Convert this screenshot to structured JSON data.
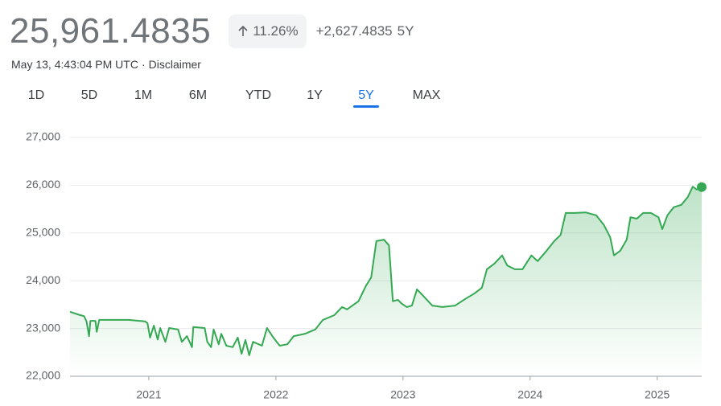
{
  "header": {
    "price": "25,961.4835",
    "change_percent": "11.26%",
    "change": "+2,627.4835",
    "period": "5Y",
    "timestamp": "May 13, 4:43:04 PM UTC",
    "separator": "·",
    "disclaimer": "Disclaimer"
  },
  "tabs": {
    "items": [
      "1D",
      "5D",
      "1M",
      "6M",
      "YTD",
      "1Y",
      "5Y",
      "MAX"
    ],
    "selected": 6
  },
  "chart_data": {
    "type": "area-line",
    "color": "#34a853",
    "grid": true,
    "x": [
      2020.38,
      2020.46,
      2020.49,
      2020.51,
      2020.53,
      2020.54,
      2020.58,
      2020.59,
      2020.61,
      2020.72,
      2020.84,
      2020.97,
      2020.99,
      2021.01,
      2021.04,
      2021.07,
      2021.09,
      2021.13,
      2021.16,
      2021.23,
      2021.26,
      2021.3,
      2021.34,
      2021.35,
      2021.44,
      2021.46,
      2021.49,
      2021.51,
      2021.55,
      2021.57,
      2021.61,
      2021.66,
      2021.7,
      2021.73,
      2021.76,
      2021.79,
      2021.82,
      2021.89,
      2021.93,
      2021.98,
      2022.03,
      2022.09,
      2022.14,
      2022.23,
      2022.31,
      2022.37,
      2022.46,
      2022.52,
      2022.56,
      2022.65,
      2022.71,
      2022.75,
      2022.79,
      2022.85,
      2022.89,
      2022.92,
      2022.96,
      2022.99,
      2023.03,
      2023.07,
      2023.11,
      2023.16,
      2023.23,
      2023.31,
      2023.41,
      2023.49,
      2023.56,
      2023.62,
      2023.66,
      2023.72,
      2023.78,
      2023.82,
      2023.88,
      2023.94,
      2024.01,
      2024.06,
      2024.13,
      2024.19,
      2024.24,
      2024.28,
      2024.35,
      2024.44,
      2024.52,
      2024.58,
      2024.63,
      2024.66,
      2024.71,
      2024.76,
      2024.79,
      2024.84,
      2024.89,
      2024.95,
      2025.01,
      2025.04,
      2025.08,
      2025.13,
      2025.19,
      2025.24,
      2025.28,
      2025.31,
      2025.35
    ],
    "values": [
      23350,
      23280,
      23260,
      23150,
      22840,
      23160,
      23160,
      22930,
      23180,
      23180,
      23180,
      23150,
      23110,
      22810,
      23060,
      22770,
      23010,
      22720,
      23010,
      22980,
      22720,
      22840,
      22610,
      23030,
      23010,
      22720,
      22610,
      22980,
      22670,
      22890,
      22640,
      22610,
      22810,
      22470,
      22760,
      22440,
      22720,
      22640,
      23010,
      22810,
      22640,
      22670,
      22840,
      22890,
      22980,
      23180,
      23280,
      23450,
      23400,
      23570,
      23900,
      24070,
      24830,
      24860,
      24740,
      23570,
      23600,
      23520,
      23450,
      23480,
      23820,
      23680,
      23480,
      23450,
      23480,
      23620,
      23730,
      23850,
      24240,
      24360,
      24530,
      24320,
      24240,
      24240,
      24530,
      24410,
      24630,
      24830,
      24960,
      25420,
      25420,
      25430,
      25370,
      25170,
      24910,
      24530,
      24630,
      24860,
      25330,
      25300,
      25420,
      25420,
      25330,
      25080,
      25370,
      25540,
      25590,
      25750,
      25970,
      25910,
      25961.4835
    ],
    "xlim": [
      2020.38,
      2025.35
    ],
    "xticks": [
      2021,
      2022,
      2023,
      2024,
      2025
    ],
    "ylim": [
      22000,
      27000
    ],
    "yticks": [
      {
        "value": 22000,
        "label": "22,000"
      },
      {
        "value": 23000,
        "label": "23,000"
      },
      {
        "value": 24000,
        "label": "24,000"
      },
      {
        "value": 25000,
        "label": "25,000"
      },
      {
        "value": 26000,
        "label": "26,000"
      },
      {
        "value": 27000,
        "label": "27,000"
      }
    ]
  }
}
